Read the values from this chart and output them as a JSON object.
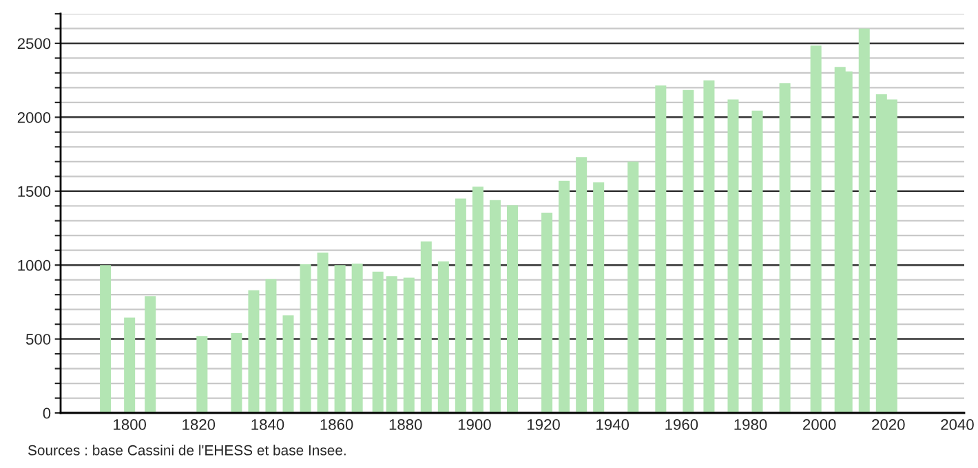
{
  "chart_data": {
    "type": "bar",
    "color": "#b3e5b3",
    "x": [
      1793,
      1800,
      1806,
      1821,
      1831,
      1836,
      1841,
      1846,
      1851,
      1856,
      1861,
      1866,
      1872,
      1876,
      1881,
      1886,
      1891,
      1896,
      1901,
      1906,
      1911,
      1921,
      1926,
      1931,
      1936,
      1946,
      1954,
      1962,
      1968,
      1975,
      1982,
      1990,
      1999,
      2006,
      2008,
      2013,
      2018,
      2021
    ],
    "values": [
      1000,
      645,
      790,
      520,
      540,
      830,
      905,
      660,
      1005,
      1085,
      1000,
      1010,
      955,
      925,
      915,
      1160,
      1025,
      1450,
      1530,
      1440,
      1405,
      1355,
      1570,
      1730,
      1560,
      1700,
      2215,
      2185,
      2250,
      2120,
      2045,
      2230,
      2485,
      2340,
      2310,
      2600,
      2155,
      2120
    ],
    "xlim": [
      1780,
      2042
    ],
    "xticks": [
      1800,
      1820,
      1840,
      1860,
      1880,
      1900,
      1920,
      1940,
      1960,
      1980,
      2000,
      2020,
      2040
    ],
    "ylim": [
      0,
      2700
    ],
    "yticks": [
      0,
      {
        "value": 100,
        "label": null
      },
      {
        "value": 200,
        "label": null
      },
      {
        "value": 300,
        "label": null
      },
      {
        "value": 400,
        "label": null
      },
      500,
      {
        "value": 600,
        "label": null
      },
      {
        "value": 700,
        "label": null
      },
      {
        "value": 800,
        "label": null
      },
      {
        "value": 900,
        "label": null
      },
      1000,
      {
        "value": 1100,
        "label": null
      },
      {
        "value": 1200,
        "label": null
      },
      {
        "value": 1300,
        "label": null
      },
      {
        "value": 1400,
        "label": null
      },
      1500,
      {
        "value": 1600,
        "label": null
      },
      {
        "value": 1700,
        "label": null
      },
      {
        "value": 1800,
        "label": null
      },
      {
        "value": 1900,
        "label": null
      },
      2000,
      {
        "value": 2100,
        "label": null
      },
      {
        "value": 2200,
        "label": null
      },
      {
        "value": 2300,
        "label": null
      },
      {
        "value": 2400,
        "label": null
      },
      2500,
      {
        "value": 2600,
        "label": null
      },
      {
        "value": 2700,
        "label": null
      }
    ],
    "grid": "y",
    "annotations": [
      "Sources : base Cassini de l'EHESS et base Insee."
    ]
  }
}
